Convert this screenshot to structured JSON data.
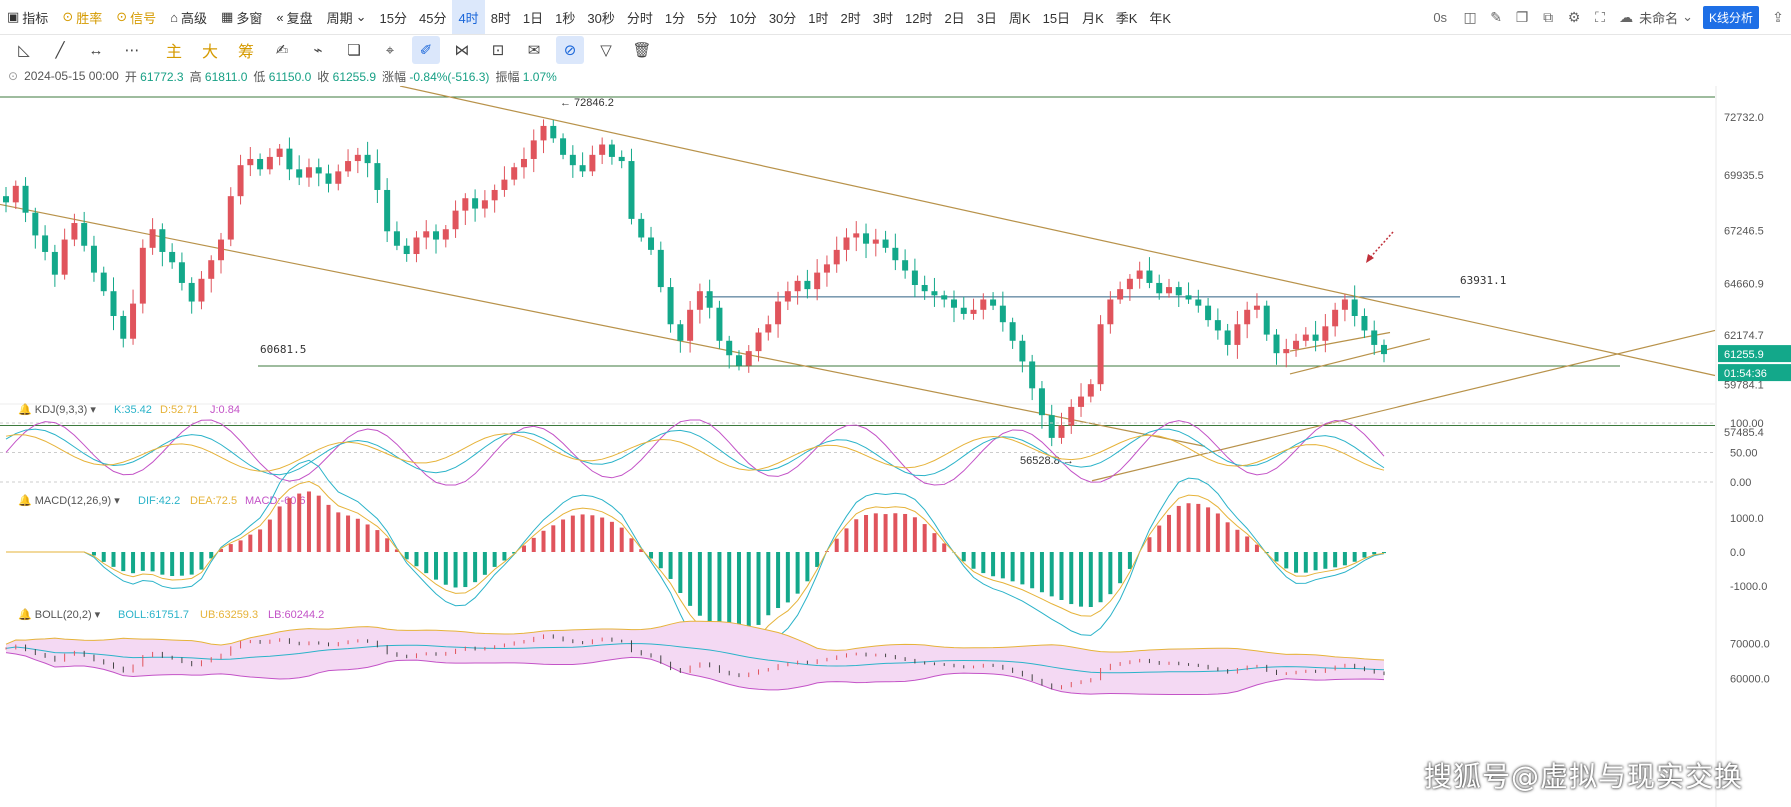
{
  "toolbar": {
    "indicator": "指标",
    "winrate": "胜率",
    "signal": "信号",
    "advanced": "高级",
    "multiwindow": "多窗",
    "replay": "复盘",
    "period": "周期",
    "periods": [
      "15分",
      "45分",
      "4时",
      "8时",
      "1日",
      "1秒",
      "30秒",
      "分时",
      "1分",
      "5分",
      "10分",
      "30分",
      "1时",
      "2时",
      "3时",
      "12时",
      "2日",
      "3日",
      "周K",
      "15日",
      "月K",
      "季K",
      "年K"
    ],
    "active_period": "4时",
    "countdown": "0s",
    "unnamed": "未命名",
    "kline_analysis": "K线分析"
  },
  "drawing_tools": [
    "主",
    "大",
    "筹"
  ],
  "ohlc": {
    "date": "2024-05-15 00:00",
    "open_label": "开",
    "open": "61772.3",
    "high_label": "高",
    "high": "61811.0",
    "low_label": "低",
    "low": "61150.0",
    "close_label": "收",
    "close": "61255.9",
    "change_label": "涨幅",
    "change": "-0.84%(-516.3)",
    "amp_label": "振幅",
    "amp": "1.07%"
  },
  "main_axis": {
    "ticks": [
      "72732.0",
      "69935.5",
      "67246.5",
      "64660.9",
      "62174.7",
      "59784.1",
      "57485.4"
    ]
  },
  "annotations": {
    "high_point": "72846.2",
    "low_point": "56528.8",
    "level_top": "63931.1",
    "level_mid": "60681.5",
    "current_price": "61255.9",
    "countdown": "01:54:36"
  },
  "kdj": {
    "name": "KDJ(9,3,3)",
    "k": "K:35.42",
    "d": "D:52.71",
    "j": "J:0.84",
    "ticks": [
      "100.00",
      "50.00",
      "0.00"
    ]
  },
  "macd": {
    "name": "MACD(12,26,9)",
    "dif": "DIF:42.2",
    "dea": "DEA:72.5",
    "macd": "MACD:-60.6",
    "ticks": [
      "1000.0",
      "0.0",
      "-1000.0"
    ]
  },
  "boll": {
    "name": "BOLL(20,2)",
    "boll": "BOLL:61751.7",
    "ub": "UB:63259.3",
    "lb": "LB:60244.2",
    "ticks": [
      "70000.0",
      "60000.0"
    ]
  },
  "watermark": "搜狐号@虚拟与现实交换",
  "colors": {
    "up": "#e0545c",
    "down": "#13a88a",
    "trend": "#b8924a",
    "level": "#3d7a3d",
    "accent": "#1e6fe6",
    "k": "#2bb3c9",
    "d": "#e6b33a",
    "j": "#c353c7"
  },
  "chart_data": {
    "type": "candlestick",
    "timeframe": "4时",
    "last_bar": {
      "date": "2024-05-15 00:00",
      "open": 61772.3,
      "high": 61811.0,
      "low": 61150.0,
      "close": 61255.9
    },
    "series_closes": [
      68600,
      69400,
      68100,
      67000,
      66200,
      65100,
      66800,
      67600,
      66500,
      65200,
      64300,
      63100,
      62000,
      63700,
      66400,
      67300,
      66200,
      65700,
      64700,
      63800,
      64900,
      65800,
      66800,
      68900,
      70400,
      70700,
      70200,
      70800,
      71200,
      70200,
      69800,
      70300,
      70000,
      69500,
      70100,
      70600,
      70900,
      70500,
      69200,
      67200,
      66500,
      66100,
      66900,
      67200,
      66800,
      67300,
      68200,
      68800,
      68300,
      68700,
      69200,
      69700,
      70300,
      70700,
      71600,
      72300,
      71700,
      70900,
      70400,
      70100,
      70900,
      71400,
      70800,
      70600,
      67800,
      66900,
      66300,
      64500,
      62700,
      61900,
      63400,
      64300,
      63500,
      61900,
      61200,
      60700,
      61400,
      62300,
      62700,
      63800,
      64300,
      64800,
      64400,
      65200,
      65600,
      66300,
      66900,
      67100,
      66600,
      66800,
      66400,
      65800,
      65300,
      64600,
      64300,
      64100,
      63900,
      63500,
      63200,
      63400,
      63900,
      63600,
      62800,
      61900,
      60900,
      59600,
      58300,
      57200,
      57800,
      58700,
      59200,
      59800,
      62700,
      63900,
      64400,
      64900,
      65300,
      64700,
      64200,
      64500,
      64100,
      63900,
      63600,
      62900,
      62400,
      61700,
      62700,
      63400,
      63600,
      62200,
      61300,
      61500,
      61900,
      62200,
      61900,
      62600,
      63400,
      63900,
      63100,
      62400,
      61700,
      61256
    ],
    "key_levels": {
      "resistance": 63931.1,
      "support": 60681.5,
      "high": 72846.2,
      "low": 56528.8
    },
    "kdj": {
      "K": 35.42,
      "D": 52.71,
      "J": 0.84
    },
    "macd": {
      "DIF": 42.2,
      "DEA": 72.5,
      "MACD": -60.6
    },
    "boll": {
      "BOLL": 61751.7,
      "UB": 63259.3,
      "LB": 60244.2
    }
  }
}
